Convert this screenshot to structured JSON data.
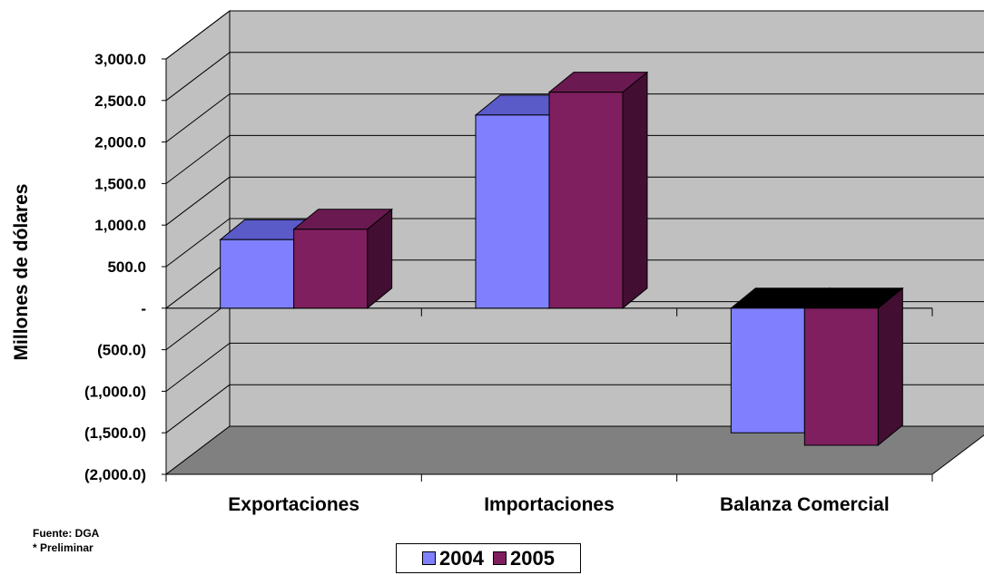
{
  "chart_data": {
    "type": "bar",
    "style": "3d-clustered-column",
    "categories": [
      "Exportaciones",
      "Importaciones",
      "Balanza Comercial"
    ],
    "series": [
      {
        "name": "2004",
        "values": [
          825,
          2325,
          -1500
        ]
      },
      {
        "name": "2005",
        "values": [
          950,
          2600,
          -1650
        ]
      }
    ],
    "ylabel": "Millones de dólares",
    "ylim": [
      -2000,
      3000
    ],
    "yticks": [
      3000,
      2500,
      2000,
      1500,
      1000,
      500,
      0,
      -500,
      -1000,
      -1500,
      -2000
    ],
    "ytick_labels": [
      "3,000.0",
      "2,500.0",
      "2,000.0",
      "1,500.0",
      "1,000.0",
      "500.0",
      "-",
      "(500.0)",
      "(1,000.0)",
      "(1,500.0)",
      "(2,000.0)"
    ],
    "grid": true,
    "legend_position": "bottom",
    "colors": {
      "series_front": [
        "#8080ff",
        "#7f1f5f"
      ],
      "series_top": [
        "#5a5ac8",
        "#6a1a50"
      ],
      "series_side": [
        "#3e3e8a",
        "#420f32"
      ],
      "wall": "#c0c0c0",
      "floor": "#808080"
    }
  },
  "notes": {
    "source": "Fuente: DGA",
    "preliminary": "* Preliminar"
  }
}
